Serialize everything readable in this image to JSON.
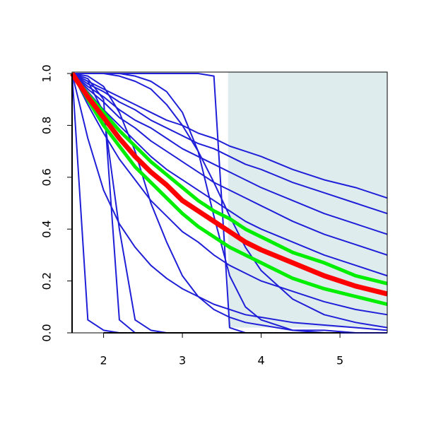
{
  "chart_data": {
    "type": "line",
    "x": [
      1.6,
      1.8,
      2.0,
      2.2,
      2.4,
      2.6,
      2.8,
      3.0,
      3.2,
      3.4,
      3.6,
      3.8,
      4.0,
      4.4,
      4.8,
      5.2,
      5.6
    ],
    "xlim": [
      1.6,
      5.6
    ],
    "xticks": [
      2,
      3,
      4,
      5
    ],
    "ylim": [
      0,
      1
    ],
    "yticks": [
      {
        "value": 0,
        "label": "0.0"
      },
      0.2,
      0.4,
      0.6,
      0.8,
      {
        "value": 1,
        "label": "1.0"
      }
    ],
    "shaded_region": {
      "xlim": [
        3.58,
        5.6
      ],
      "ylim": [
        0.02,
        1
      ],
      "color": "#dfeced"
    },
    "series": [
      {
        "color": "#1f1fd8",
        "line_width": 2,
        "values": [
          1,
          0.97,
          0.94,
          0.91,
          0.88,
          0.85,
          0.82,
          0.8,
          0.77,
          0.75,
          0.72,
          0.7,
          0.68,
          0.63,
          0.59,
          0.56,
          0.52
        ]
      },
      {
        "color": "#1f1fd8",
        "line_width": 2,
        "values": [
          1,
          0.96,
          0.93,
          0.89,
          0.86,
          0.82,
          0.79,
          0.76,
          0.73,
          0.71,
          0.68,
          0.65,
          0.63,
          0.58,
          0.54,
          0.5,
          0.46
        ]
      },
      {
        "color": "#1f1fd8",
        "line_width": 2,
        "values": [
          1,
          0.95,
          0.91,
          0.86,
          0.82,
          0.79,
          0.75,
          0.71,
          0.68,
          0.65,
          0.62,
          0.59,
          0.56,
          0.51,
          0.46,
          0.42,
          0.38
        ]
      },
      {
        "color": "#1f1fd8",
        "line_width": 2,
        "values": [
          1,
          0.94,
          0.89,
          0.83,
          0.79,
          0.74,
          0.7,
          0.66,
          0.62,
          0.58,
          0.55,
          0.52,
          0.49,
          0.43,
          0.38,
          0.34,
          0.3
        ]
      },
      {
        "color": "#1f1fd8",
        "line_width": 2,
        "values": [
          1,
          0.93,
          0.86,
          0.8,
          0.74,
          0.68,
          0.63,
          0.59,
          0.55,
          0.51,
          0.47,
          0.43,
          0.4,
          0.35,
          0.3,
          0.26,
          0.22
        ]
      },
      {
        "color": "#1f1fd8",
        "line_width": 2,
        "values": [
          1,
          0.88,
          0.77,
          0.67,
          0.59,
          0.51,
          0.45,
          0.39,
          0.35,
          0.3,
          0.26,
          0.23,
          0.2,
          0.16,
          0.12,
          0.09,
          0.07
        ]
      },
      {
        "color": "#1f1fd8",
        "line_width": 2,
        "values": [
          1,
          0.05,
          0.01,
          0,
          0,
          0,
          0,
          0,
          0,
          0,
          0,
          0,
          0,
          0,
          0,
          0,
          0
        ]
      },
      {
        "color": "#1f1fd8",
        "line_width": 2,
        "values": [
          1,
          0.98,
          0.9,
          0.05,
          0,
          0,
          0,
          0,
          0,
          0,
          0,
          0,
          0,
          0,
          0,
          0,
          0
        ]
      },
      {
        "color": "#1f1fd8",
        "line_width": 2,
        "values": [
          1,
          0.97,
          0.85,
          0.4,
          0.05,
          0.01,
          0,
          0,
          0,
          0,
          0,
          0,
          0,
          0,
          0,
          0,
          0
        ]
      },
      {
        "color": "#1f1fd8",
        "line_width": 2,
        "values": [
          1,
          1,
          1,
          1,
          1,
          1,
          1,
          1,
          1,
          0.99,
          0.02,
          0,
          0,
          0,
          0,
          0,
          0
        ]
      },
      {
        "color": "#1f1fd8",
        "line_width": 2,
        "values": [
          1,
          1,
          1,
          1,
          0.99,
          0.97,
          0.93,
          0.85,
          0.7,
          0.45,
          0.22,
          0.1,
          0.05,
          0.01,
          0,
          0,
          0
        ]
      },
      {
        "color": "#1f1fd8",
        "line_width": 2,
        "values": [
          1,
          0.99,
          0.95,
          0.85,
          0.7,
          0.5,
          0.35,
          0.22,
          0.14,
          0.09,
          0.06,
          0.04,
          0.03,
          0.01,
          0.01,
          0,
          0
        ]
      },
      {
        "color": "#1f1fd8",
        "line_width": 2,
        "values": [
          1,
          1,
          1,
          0.99,
          0.97,
          0.94,
          0.88,
          0.8,
          0.7,
          0.58,
          0.45,
          0.33,
          0.24,
          0.13,
          0.07,
          0.04,
          0.02
        ]
      },
      {
        "color": "#1f1fd8",
        "line_width": 2,
        "values": [
          1,
          0.75,
          0.55,
          0.42,
          0.33,
          0.26,
          0.21,
          0.17,
          0.14,
          0.11,
          0.09,
          0.07,
          0.06,
          0.04,
          0.03,
          0.02,
          0.01
        ]
      },
      {
        "color": "#00ee00",
        "line_width": 5,
        "values": [
          1,
          0.9,
          0.8,
          0.72,
          0.64,
          0.58,
          0.52,
          0.46,
          0.41,
          0.37,
          0.33,
          0.3,
          0.27,
          0.21,
          0.17,
          0.14,
          0.11
        ]
      },
      {
        "color": "#00ee00",
        "line_width": 5,
        "values": [
          1,
          0.92,
          0.85,
          0.78,
          0.72,
          0.66,
          0.61,
          0.56,
          0.51,
          0.47,
          0.44,
          0.4,
          0.37,
          0.31,
          0.27,
          0.22,
          0.19
        ]
      },
      {
        "color": "#ff0000",
        "line_width": 7,
        "values": [
          1,
          0.91,
          0.83,
          0.75,
          0.68,
          0.62,
          0.57,
          0.51,
          0.47,
          0.43,
          0.39,
          0.35,
          0.32,
          0.27,
          0.22,
          0.18,
          0.15
        ]
      }
    ]
  }
}
